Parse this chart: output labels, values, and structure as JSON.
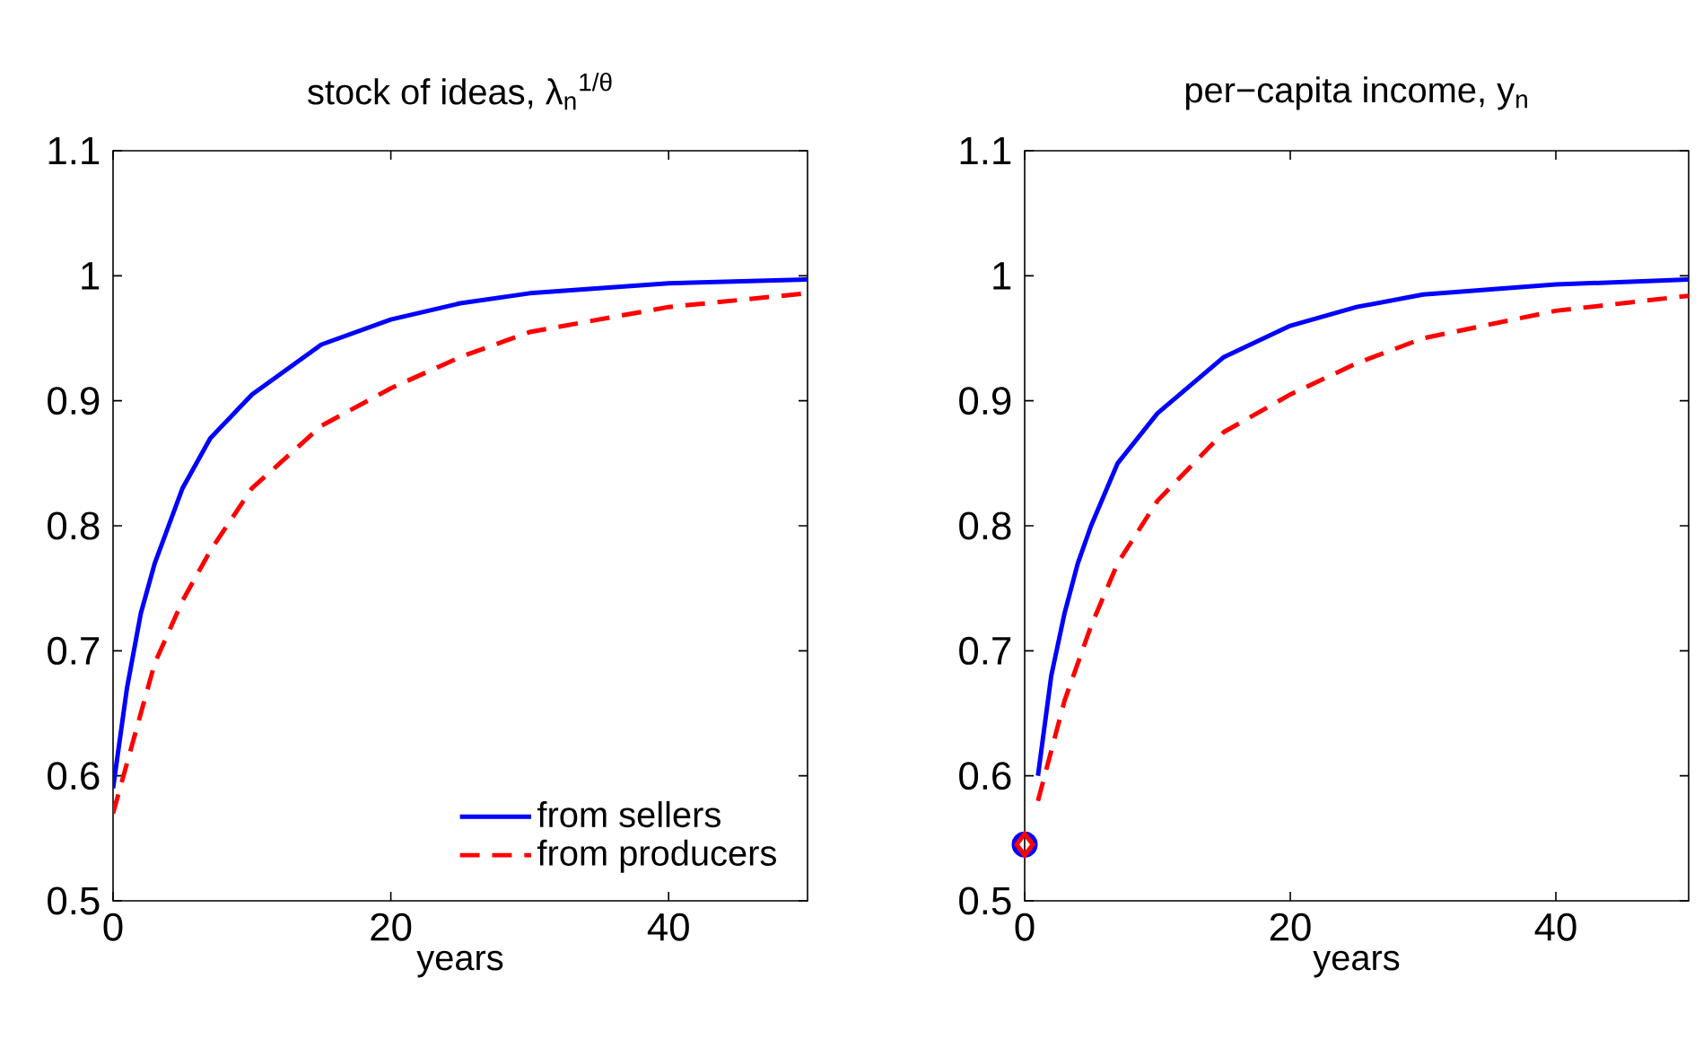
{
  "chart_data": [
    {
      "type": "line",
      "title": "stock of ideas, λ$_{n}$$^{1/θ}$",
      "xlabel": "years",
      "xlim": [
        0,
        50
      ],
      "ylim": [
        0.5,
        1.1
      ],
      "xticks": [
        0,
        20,
        40
      ],
      "yticks": [
        0.5,
        0.6,
        0.7,
        0.8,
        0.9,
        1,
        1.1
      ],
      "grid": false,
      "legend": "bottom right",
      "series": [
        {
          "name": "from sellers",
          "color": "#0000ff",
          "line_style": "solid",
          "x": [
            0,
            1,
            2,
            3,
            4,
            5,
            7,
            10,
            15,
            20,
            25,
            30,
            40,
            50
          ],
          "values": [
            0.59,
            0.67,
            0.73,
            0.77,
            0.8,
            0.83,
            0.87,
            0.905,
            0.945,
            0.965,
            0.978,
            0.986,
            0.994,
            0.997
          ]
        },
        {
          "name": "from producers",
          "color": "#ff0000",
          "line_style": "dashed",
          "x": [
            0,
            1,
            2,
            3,
            5,
            7,
            10,
            15,
            20,
            25,
            30,
            40,
            50
          ],
          "values": [
            0.57,
            0.61,
            0.65,
            0.69,
            0.74,
            0.78,
            0.83,
            0.88,
            0.91,
            0.935,
            0.955,
            0.975,
            0.986
          ]
        }
      ]
    },
    {
      "type": "line",
      "title": "per−capita income, y$_{n}$",
      "xlabel": "years",
      "xlim": [
        0,
        50
      ],
      "ylim": [
        0.5,
        1.1
      ],
      "xticks": [
        0,
        20,
        40
      ],
      "yticks": [
        0.5,
        0.6,
        0.7,
        0.8,
        0.9,
        1,
        1.1
      ],
      "grid": false,
      "series": [
        {
          "color": "#0000ff",
          "line_style": "solid",
          "x": [
            1,
            2,
            3,
            4,
            5,
            7,
            10,
            15,
            20,
            25,
            30,
            40,
            50
          ],
          "values": [
            0.6,
            0.68,
            0.73,
            0.77,
            0.8,
            0.85,
            0.89,
            0.935,
            0.96,
            0.975,
            0.985,
            0.993,
            0.997
          ]
        },
        {
          "color": "#ff0000",
          "line_style": "dashed",
          "x": [
            1,
            2,
            3,
            5,
            7,
            10,
            15,
            20,
            25,
            30,
            40,
            50
          ],
          "values": [
            0.58,
            0.62,
            0.66,
            0.72,
            0.77,
            0.82,
            0.875,
            0.905,
            0.93,
            0.95,
            0.972,
            0.984
          ]
        },
        {
          "type": "scatter",
          "marker": "circle",
          "color": "#0000ff",
          "x": [
            0
          ],
          "values": [
            0.545
          ]
        },
        {
          "type": "scatter",
          "marker": "diamond",
          "color": "#ff0000",
          "x": [
            0
          ],
          "values": [
            0.545
          ]
        }
      ]
    }
  ]
}
